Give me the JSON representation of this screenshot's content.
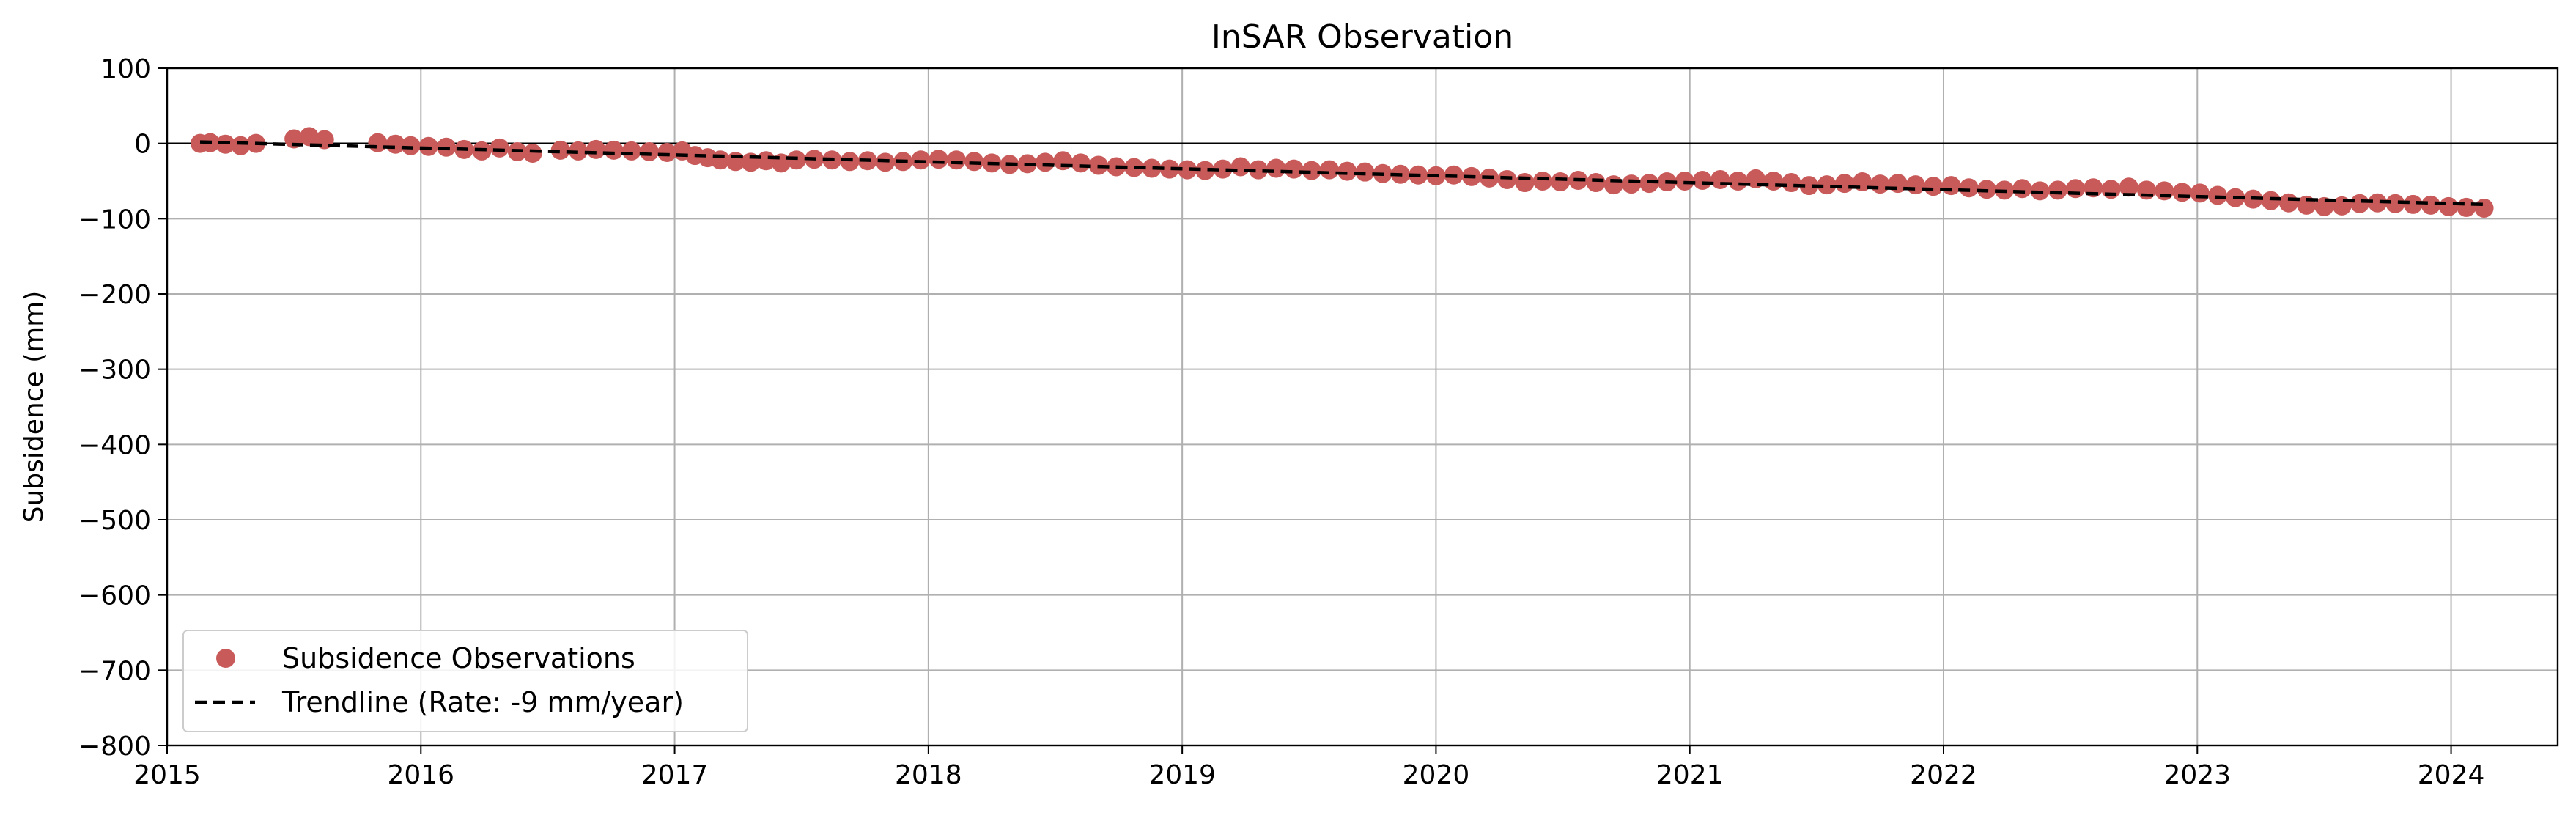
{
  "chart_data": {
    "type": "scatter",
    "title": "InSAR Observation",
    "xlabel": "",
    "ylabel": "Subsidence (mm)",
    "xlim": [
      2015.0,
      2024.42
    ],
    "ylim": [
      -800,
      100
    ],
    "x_ticks": [
      2015,
      2016,
      2017,
      2018,
      2019,
      2020,
      2021,
      2022,
      2023,
      2024
    ],
    "y_ticks": [
      100,
      0,
      -100,
      -200,
      -300,
      -400,
      -500,
      -600,
      -700,
      -800
    ],
    "grid": true,
    "zero_line": 0,
    "legend_position": "lower-left",
    "colors": {
      "points": "#c85a5a",
      "trend": "#000000",
      "grid": "#b0b0b0"
    },
    "series": [
      {
        "name": "Subsidence Observations",
        "kind": "scatter",
        "points": [
          [
            2015.13,
            0
          ],
          [
            2015.17,
            1
          ],
          [
            2015.23,
            -1
          ],
          [
            2015.29,
            -3
          ],
          [
            2015.35,
            0
          ],
          [
            2015.5,
            6
          ],
          [
            2015.56,
            9
          ],
          [
            2015.62,
            5
          ],
          [
            2015.83,
            1
          ],
          [
            2015.9,
            -1
          ],
          [
            2015.96,
            -3
          ],
          [
            2016.03,
            -4
          ],
          [
            2016.1,
            -5
          ],
          [
            2016.17,
            -8
          ],
          [
            2016.24,
            -10
          ],
          [
            2016.31,
            -6
          ],
          [
            2016.38,
            -11
          ],
          [
            2016.44,
            -13
          ],
          [
            2016.55,
            -9
          ],
          [
            2016.62,
            -10
          ],
          [
            2016.69,
            -8
          ],
          [
            2016.76,
            -9
          ],
          [
            2016.83,
            -10
          ],
          [
            2016.9,
            -11
          ],
          [
            2016.97,
            -12
          ],
          [
            2017.03,
            -10
          ],
          [
            2017.08,
            -16
          ],
          [
            2017.13,
            -19
          ],
          [
            2017.18,
            -22
          ],
          [
            2017.24,
            -24
          ],
          [
            2017.3,
            -25
          ],
          [
            2017.36,
            -23
          ],
          [
            2017.42,
            -26
          ],
          [
            2017.48,
            -22
          ],
          [
            2017.55,
            -21
          ],
          [
            2017.62,
            -22
          ],
          [
            2017.69,
            -24
          ],
          [
            2017.76,
            -23
          ],
          [
            2017.83,
            -25
          ],
          [
            2017.9,
            -24
          ],
          [
            2017.97,
            -22
          ],
          [
            2018.04,
            -21
          ],
          [
            2018.11,
            -22
          ],
          [
            2018.18,
            -24
          ],
          [
            2018.25,
            -26
          ],
          [
            2018.32,
            -28
          ],
          [
            2018.39,
            -27
          ],
          [
            2018.46,
            -25
          ],
          [
            2018.53,
            -23
          ],
          [
            2018.6,
            -26
          ],
          [
            2018.67,
            -29
          ],
          [
            2018.74,
            -31
          ],
          [
            2018.81,
            -32
          ],
          [
            2018.88,
            -33
          ],
          [
            2018.95,
            -34
          ],
          [
            2019.02,
            -35
          ],
          [
            2019.09,
            -36
          ],
          [
            2019.16,
            -34
          ],
          [
            2019.23,
            -31
          ],
          [
            2019.3,
            -35
          ],
          [
            2019.37,
            -33
          ],
          [
            2019.44,
            -34
          ],
          [
            2019.51,
            -36
          ],
          [
            2019.58,
            -35
          ],
          [
            2019.65,
            -37
          ],
          [
            2019.72,
            -38
          ],
          [
            2019.79,
            -40
          ],
          [
            2019.86,
            -41
          ],
          [
            2019.93,
            -42
          ],
          [
            2020.0,
            -43
          ],
          [
            2020.07,
            -42
          ],
          [
            2020.14,
            -44
          ],
          [
            2020.21,
            -46
          ],
          [
            2020.28,
            -48
          ],
          [
            2020.35,
            -52
          ],
          [
            2020.42,
            -50
          ],
          [
            2020.49,
            -51
          ],
          [
            2020.56,
            -49
          ],
          [
            2020.63,
            -52
          ],
          [
            2020.7,
            -55
          ],
          [
            2020.77,
            -54
          ],
          [
            2020.84,
            -53
          ],
          [
            2020.91,
            -51
          ],
          [
            2020.98,
            -50
          ],
          [
            2021.05,
            -49
          ],
          [
            2021.12,
            -48
          ],
          [
            2021.19,
            -50
          ],
          [
            2021.26,
            -47
          ],
          [
            2021.33,
            -50
          ],
          [
            2021.4,
            -52
          ],
          [
            2021.47,
            -56
          ],
          [
            2021.54,
            -55
          ],
          [
            2021.61,
            -53
          ],
          [
            2021.68,
            -51
          ],
          [
            2021.75,
            -54
          ],
          [
            2021.82,
            -53
          ],
          [
            2021.89,
            -55
          ],
          [
            2021.96,
            -57
          ],
          [
            2022.03,
            -56
          ],
          [
            2022.1,
            -59
          ],
          [
            2022.17,
            -61
          ],
          [
            2022.24,
            -62
          ],
          [
            2022.31,
            -60
          ],
          [
            2022.38,
            -63
          ],
          [
            2022.45,
            -62
          ],
          [
            2022.52,
            -60
          ],
          [
            2022.59,
            -59
          ],
          [
            2022.66,
            -61
          ],
          [
            2022.73,
            -58
          ],
          [
            2022.8,
            -62
          ],
          [
            2022.87,
            -63
          ],
          [
            2022.94,
            -65
          ],
          [
            2023.01,
            -66
          ],
          [
            2023.08,
            -69
          ],
          [
            2023.15,
            -72
          ],
          [
            2023.22,
            -74
          ],
          [
            2023.29,
            -76
          ],
          [
            2023.36,
            -79
          ],
          [
            2023.43,
            -82
          ],
          [
            2023.5,
            -84
          ],
          [
            2023.57,
            -83
          ],
          [
            2023.64,
            -80
          ],
          [
            2023.71,
            -79
          ],
          [
            2023.78,
            -80
          ],
          [
            2023.85,
            -81
          ],
          [
            2023.92,
            -82
          ],
          [
            2023.99,
            -84
          ],
          [
            2024.06,
            -85
          ],
          [
            2024.13,
            -86
          ]
        ]
      },
      {
        "name": "Trendline (Rate: -9 mm/year)",
        "kind": "line",
        "style": "dashed",
        "points": [
          [
            2015.13,
            2
          ],
          [
            2024.13,
            -81
          ]
        ]
      }
    ]
  }
}
